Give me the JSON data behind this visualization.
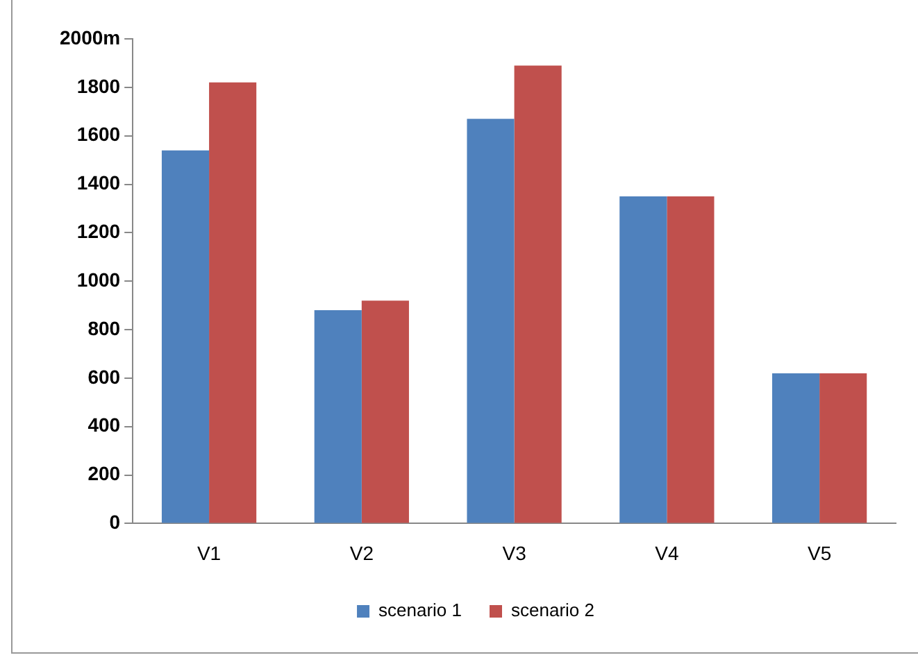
{
  "chart_data": {
    "type": "bar",
    "categories": [
      "V1",
      "V2",
      "V3",
      "V4",
      "V5"
    ],
    "series": [
      {
        "name": "scenario 1",
        "color": "#4f81bd",
        "values": [
          1540,
          880,
          1670,
          1350,
          620
        ]
      },
      {
        "name": "scenario 2",
        "color": "#c0504d",
        "values": [
          1820,
          920,
          1890,
          1350,
          620
        ]
      }
    ],
    "ylim": [
      0,
      2000
    ],
    "yticks": [
      0,
      200,
      400,
      600,
      800,
      1000,
      1200,
      1400,
      1600,
      1800,
      {
        "value": 2000,
        "label": "2000m"
      }
    ],
    "grid": false,
    "legend": "bottom"
  }
}
